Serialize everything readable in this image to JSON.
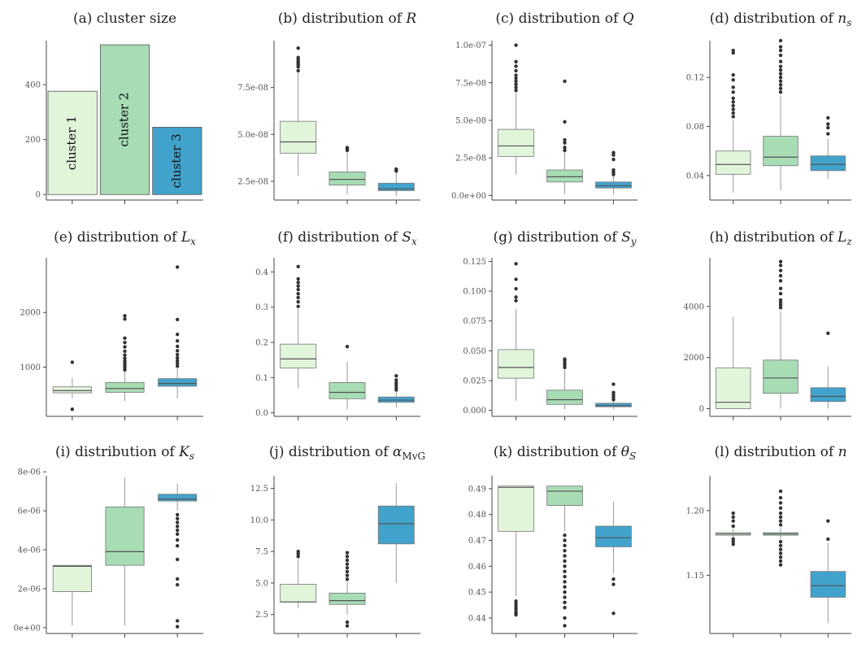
{
  "colors": {
    "cluster1": "#e1f5db",
    "cluster2": "#a7dcb5",
    "cluster3": "#41a3cc"
  },
  "chart_data": [
    {
      "id": "a",
      "type": "bar",
      "title": "(a) cluster size",
      "categories": [
        "cluster 1",
        "cluster 2",
        "cluster 3"
      ],
      "values": [
        376,
        545,
        245
      ],
      "bar_labels": [
        "cluster 1",
        "cluster 2",
        "cluster 3"
      ],
      "ylim": [
        -20,
        560
      ],
      "yticks": [
        {
          "v": 0,
          "label": "0"
        },
        {
          "v": 200,
          "label": "200"
        },
        {
          "v": 400,
          "label": "400"
        }
      ]
    },
    {
      "id": "b",
      "type": "box",
      "title_pre": "(b) distribution of ",
      "title_var": "R",
      "title_sub": "",
      "ylim": [
        1.5e-08,
        1e-07
      ],
      "yticks": [
        {
          "v": 2.5e-08,
          "label": "2.5e-08"
        },
        {
          "v": 5e-08,
          "label": "5.0e-08"
        },
        {
          "v": 7.5e-08,
          "label": "7.5e-08"
        }
      ],
      "boxes": [
        {
          "q1": 4e-08,
          "med": 4.6e-08,
          "q3": 5.7e-08,
          "wlo": 2.8e-08,
          "whi": 8.3e-08,
          "fliers": [
            8.4e-08,
            8.6e-08,
            8.7e-08,
            8.8e-08,
            8.9e-08,
            9e-08,
            9.1e-08,
            9.6e-08
          ]
        },
        {
          "q1": 2.3e-08,
          "med": 2.6e-08,
          "q3": 3e-08,
          "wlo": 1.8e-08,
          "whi": 4.1e-08,
          "fliers": [
            4.15e-08,
            4.2e-08,
            4.25e-08,
            4.3e-08
          ]
        },
        {
          "q1": 2e-08,
          "med": 2.1e-08,
          "q3": 2.4e-08,
          "wlo": 1.7e-08,
          "whi": 3e-08,
          "fliers": [
            3.05e-08,
            3.1e-08,
            3.15e-08
          ]
        }
      ]
    },
    {
      "id": "c",
      "type": "box",
      "title_pre": "(c) distribution of ",
      "title_var": "Q",
      "title_sub": "",
      "ylim": [
        -3e-09,
        1.03e-07
      ],
      "yticks": [
        {
          "v": 0,
          "label": "0.0e+00"
        },
        {
          "v": 2.5e-08,
          "label": "2.5e-08"
        },
        {
          "v": 5e-08,
          "label": "5.0e-08"
        },
        {
          "v": 7.5e-08,
          "label": "7.5e-08"
        },
        {
          "v": 1e-07,
          "label": "1.0e-07"
        }
      ],
      "boxes": [
        {
          "q1": 2.6e-08,
          "med": 3.3e-08,
          "q3": 4.4e-08,
          "wlo": 1.4e-08,
          "whi": 6.9e-08,
          "fliers": [
            7e-08,
            7.2e-08,
            7.4e-08,
            7.6e-08,
            7.8e-08,
            8e-08,
            8.3e-08,
            8.6e-08,
            8.9e-08,
            1e-07
          ]
        },
        {
          "q1": 9e-09,
          "med": 1.25e-08,
          "q3": 1.7e-08,
          "wlo": 1e-09,
          "whi": 2.9e-08,
          "fliers": [
            3e-08,
            3.2e-08,
            3.5e-08,
            3.7e-08,
            4.9e-08,
            7.6e-08
          ]
        },
        {
          "q1": 5e-09,
          "med": 6.5e-09,
          "q3": 9e-09,
          "wlo": 5e-10,
          "whi": 1.3e-08,
          "fliers": [
            1.4e-08,
            1.55e-08,
            1.7e-08,
            2.4e-08,
            2.7e-08,
            2.85e-08
          ]
        }
      ]
    },
    {
      "id": "d",
      "type": "box",
      "title_pre": "(d) distribution of ",
      "title_var": "n",
      "title_sub": "s",
      "ylim": [
        0.02,
        0.15
      ],
      "yticks": [
        {
          "v": 0.04,
          "label": "0.04"
        },
        {
          "v": 0.08,
          "label": "0.08"
        },
        {
          "v": 0.12,
          "label": "0.12"
        }
      ],
      "boxes": [
        {
          "q1": 0.041,
          "med": 0.049,
          "q3": 0.06,
          "wlo": 0.026,
          "whi": 0.085,
          "fliers": [
            0.088,
            0.091,
            0.094,
            0.097,
            0.1,
            0.103,
            0.108,
            0.112,
            0.118,
            0.122,
            0.14,
            0.142
          ]
        },
        {
          "q1": 0.048,
          "med": 0.055,
          "q3": 0.072,
          "wlo": 0.028,
          "whi": 0.105,
          "fliers": [
            0.108,
            0.111,
            0.114,
            0.117,
            0.12,
            0.123,
            0.126,
            0.129,
            0.133,
            0.138,
            0.142,
            0.145,
            0.15
          ]
        },
        {
          "q1": 0.044,
          "med": 0.049,
          "q3": 0.056,
          "wlo": 0.037,
          "whi": 0.07,
          "fliers": [
            0.074,
            0.079,
            0.082,
            0.087
          ]
        }
      ]
    },
    {
      "id": "e",
      "type": "box",
      "title_pre": "(e) distribution of ",
      "title_var": "L",
      "title_sub": "x",
      "ylim": [
        100,
        3000
      ],
      "yticks": [
        {
          "v": 1000,
          "label": "1000"
        },
        {
          "v": 2000,
          "label": "2000"
        }
      ],
      "boxes": [
        {
          "q1": 530,
          "med": 570,
          "q3": 640,
          "wlo": 430,
          "whi": 800,
          "fliers": [
            1090,
            230
          ]
        },
        {
          "q1": 540,
          "med": 610,
          "q3": 720,
          "wlo": 380,
          "whi": 920,
          "fliers": [
            950,
            990,
            1030,
            1070,
            1110,
            1160,
            1220,
            1290,
            1370,
            1450,
            1530,
            1880,
            1940
          ]
        },
        {
          "q1": 650,
          "med": 700,
          "q3": 790,
          "wlo": 430,
          "whi": 990,
          "fliers": [
            1020,
            1070,
            1120,
            1170,
            1230,
            1300,
            1380,
            1480,
            1600,
            1870,
            2830
          ]
        }
      ]
    },
    {
      "id": "f",
      "type": "box",
      "title_pre": "(f) distribution of ",
      "title_var": "S",
      "title_sub": "x",
      "ylim": [
        -0.01,
        0.44
      ],
      "yticks": [
        {
          "v": 0,
          "label": "0.0"
        },
        {
          "v": 0.1,
          "label": "0.1"
        },
        {
          "v": 0.2,
          "label": "0.2"
        },
        {
          "v": 0.3,
          "label": "0.3"
        },
        {
          "v": 0.4,
          "label": "0.4"
        }
      ],
      "boxes": [
        {
          "q1": 0.127,
          "med": 0.153,
          "q3": 0.195,
          "wlo": 0.07,
          "whi": 0.295,
          "fliers": [
            0.302,
            0.315,
            0.327,
            0.338,
            0.35,
            0.36,
            0.37,
            0.38,
            0.415
          ]
        },
        {
          "q1": 0.04,
          "med": 0.058,
          "q3": 0.086,
          "wlo": 0.01,
          "whi": 0.145,
          "fliers": [
            0.188
          ]
        },
        {
          "q1": 0.03,
          "med": 0.036,
          "q3": 0.045,
          "wlo": 0.015,
          "whi": 0.06,
          "fliers": [
            0.065,
            0.071,
            0.078,
            0.085,
            0.093,
            0.105
          ]
        }
      ]
    },
    {
      "id": "g",
      "type": "box",
      "title_pre": "(g) distribution of ",
      "title_var": "S",
      "title_sub": "y",
      "ylim": [
        -0.005,
        0.128
      ],
      "yticks": [
        {
          "v": 0,
          "label": "0.000"
        },
        {
          "v": 0.025,
          "label": "0.025"
        },
        {
          "v": 0.05,
          "label": "0.050"
        },
        {
          "v": 0.075,
          "label": "0.075"
        },
        {
          "v": 0.1,
          "label": "0.100"
        },
        {
          "v": 0.125,
          "label": "0.125"
        }
      ],
      "boxes": [
        {
          "q1": 0.027,
          "med": 0.036,
          "q3": 0.051,
          "wlo": 0.008,
          "whi": 0.085,
          "fliers": [
            0.092,
            0.095,
            0.102,
            0.11,
            0.123
          ]
        },
        {
          "q1": 0.005,
          "med": 0.009,
          "q3": 0.017,
          "wlo": 0.001,
          "whi": 0.034,
          "fliers": [
            0.036,
            0.038,
            0.04,
            0.042,
            0.043
          ]
        },
        {
          "q1": 0.003,
          "med": 0.004,
          "q3": 0.006,
          "wlo": 0.001,
          "whi": 0.008,
          "fliers": [
            0.009,
            0.011,
            0.013,
            0.015,
            0.022
          ]
        }
      ]
    },
    {
      "id": "h",
      "type": "box",
      "title_pre": "(h) distribution of ",
      "title_var": "L",
      "title_sub": "z",
      "ylim": [
        -300,
        5900
      ],
      "yticks": [
        {
          "v": 0,
          "label": "0"
        },
        {
          "v": 2000,
          "label": "2000"
        },
        {
          "v": 4000,
          "label": "4000"
        }
      ],
      "boxes": [
        {
          "q1": 0,
          "med": 250,
          "q3": 1600,
          "wlo": 0,
          "whi": 3600,
          "fliers": []
        },
        {
          "q1": 600,
          "med": 1200,
          "q3": 1900,
          "wlo": 0,
          "whi": 3800,
          "fliers": [
            3950,
            4050,
            4150,
            4250,
            4500,
            4700,
            5000,
            5200,
            5400,
            5600,
            5750
          ]
        },
        {
          "q1": 280,
          "med": 480,
          "q3": 820,
          "wlo": 0,
          "whi": 1650,
          "fliers": [
            2950
          ]
        }
      ]
    },
    {
      "id": "i",
      "type": "box",
      "title_pre": "(i) distribution of ",
      "title_var": "K",
      "title_sub": "s",
      "ylim": [
        -3e-07,
        7.8e-06
      ],
      "yticks": [
        {
          "v": 0,
          "label": "0e+00"
        },
        {
          "v": 2e-06,
          "label": "2e-06"
        },
        {
          "v": 4e-06,
          "label": "4e-06"
        },
        {
          "v": 6e-06,
          "label": "6e-06"
        },
        {
          "v": 8e-06,
          "label": "8e-06"
        }
      ],
      "boxes": [
        {
          "q1": 1.85e-06,
          "med": 3.15e-06,
          "q3": 3.2e-06,
          "wlo": 1e-07,
          "whi": 3.2e-06,
          "fliers": []
        },
        {
          "q1": 3.2e-06,
          "med": 3.9e-06,
          "q3": 6.2e-06,
          "wlo": 1e-07,
          "whi": 7.7e-06,
          "fliers": []
        },
        {
          "q1": 6.5e-06,
          "med": 6.6e-06,
          "q3": 6.85e-06,
          "wlo": 6e-06,
          "whi": 7.4e-06,
          "fliers": [
            5.8e-06,
            5.6e-06,
            5.4e-06,
            5.2e-06,
            5e-06,
            4.8e-06,
            4.5e-06,
            4.2e-06,
            3.5e-06,
            2.5e-06,
            2.2e-06,
            3.5e-07,
            5e-08
          ]
        }
      ]
    },
    {
      "id": "j",
      "type": "box",
      "title_pre": "(j) distribution of ",
      "title_var": "α",
      "title_sub": "MvG",
      "ylim": [
        1.0,
        13.5
      ],
      "yticks": [
        {
          "v": 2.5,
          "label": "2.5"
        },
        {
          "v": 5,
          "label": "5.0"
        },
        {
          "v": 7.5,
          "label": "7.5"
        },
        {
          "v": 10,
          "label": "10.0"
        },
        {
          "v": 12.5,
          "label": "12.5"
        }
      ],
      "boxes": [
        {
          "q1": 3.5,
          "med": 3.5,
          "q3": 4.9,
          "wlo": 3.0,
          "whi": 6.9,
          "fliers": [
            7.1,
            7.3,
            7.5
          ]
        },
        {
          "q1": 3.3,
          "med": 3.6,
          "q3": 4.2,
          "wlo": 2.5,
          "whi": 5.1,
          "fliers": [
            5.3,
            5.6,
            5.9,
            6.2,
            6.5,
            6.8,
            7.1,
            7.4,
            1.9,
            1.6
          ]
        },
        {
          "q1": 8.1,
          "med": 9.7,
          "q3": 11.1,
          "wlo": 5.0,
          "whi": 12.9,
          "fliers": []
        }
      ]
    },
    {
      "id": "k",
      "type": "box",
      "title_pre": "(k) distribution of ",
      "title_var": "θ",
      "title_sub": "S",
      "ylim": [
        0.434,
        0.495
      ],
      "yticks": [
        {
          "v": 0.44,
          "label": "0.44"
        },
        {
          "v": 0.45,
          "label": "0.45"
        },
        {
          "v": 0.46,
          "label": "0.46"
        },
        {
          "v": 0.47,
          "label": "0.47"
        },
        {
          "v": 0.48,
          "label": "0.48"
        },
        {
          "v": 0.49,
          "label": "0.49"
        }
      ],
      "boxes": [
        {
          "q1": 0.4735,
          "med": 0.4905,
          "q3": 0.491,
          "wlo": 0.4485,
          "whi": 0.491,
          "fliers": [
            0.4465,
            0.4455,
            0.4445,
            0.4435,
            0.4425,
            0.4418,
            0.4412
          ]
        },
        {
          "q1": 0.4835,
          "med": 0.489,
          "q3": 0.491,
          "wlo": 0.4735,
          "whi": 0.491,
          "fliers": [
            0.472,
            0.47,
            0.468,
            0.466,
            0.464,
            0.462,
            0.46,
            0.458,
            0.456,
            0.454,
            0.452,
            0.45,
            0.448,
            0.446,
            0.444,
            0.44,
            0.437
          ]
        },
        {
          "q1": 0.4675,
          "med": 0.471,
          "q3": 0.4755,
          "wlo": 0.457,
          "whi": 0.485,
          "fliers": [
            0.455,
            0.453,
            0.4418
          ]
        }
      ]
    },
    {
      "id": "l",
      "type": "box",
      "title_pre": "(l) distribution of ",
      "title_var": "n",
      "title_sub": "",
      "ylim": [
        1.105,
        1.227
      ],
      "yticks": [
        {
          "v": 1.15,
          "label": "1.15"
        },
        {
          "v": 1.2,
          "label": "1.20"
        }
      ],
      "boxes": [
        {
          "q1": 1.181,
          "med": 1.182,
          "q3": 1.183,
          "wlo": 1.179,
          "whi": 1.186,
          "fliers": [
            1.188,
            1.192,
            1.195,
            1.198,
            1.178,
            1.176,
            1.174
          ]
        },
        {
          "q1": 1.181,
          "med": 1.182,
          "q3": 1.183,
          "wlo": 1.178,
          "whi": 1.187,
          "fliers": [
            1.189,
            1.192,
            1.195,
            1.198,
            1.202,
            1.206,
            1.21,
            1.215,
            1.176,
            1.173,
            1.17,
            1.167,
            1.164,
            1.161,
            1.158
          ]
        },
        {
          "q1": 1.133,
          "med": 1.142,
          "q3": 1.153,
          "wlo": 1.113,
          "whi": 1.175,
          "fliers": [
            1.178,
            1.192
          ]
        }
      ]
    }
  ]
}
